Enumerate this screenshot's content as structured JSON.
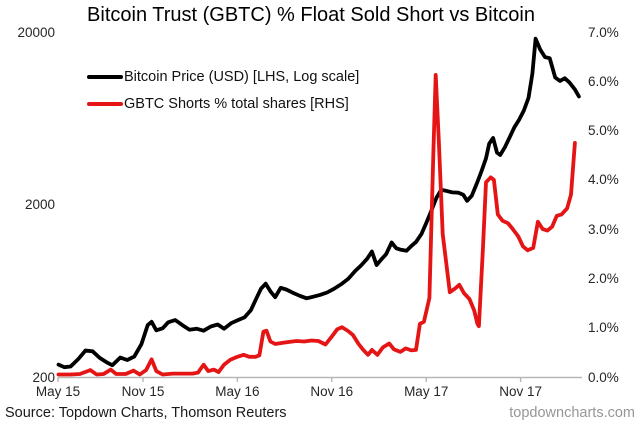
{
  "title": "Bitcoin Trust (GBTC) % Float Sold Short vs Bitcoin",
  "legend": [
    {
      "label": "Bitcoin Price (USD) [LHS, Log scale]",
      "color": "#000000"
    },
    {
      "label": "GBTC Shorts % total shares [RHS]",
      "color": "#e51515"
    }
  ],
  "footer": {
    "source": "Source: Topdown Charts, Thomson Reuters",
    "website": "topdowncharts.com"
  },
  "colors": {
    "bitcoin_line": "#000000",
    "shorts_line": "#e51515",
    "axis": "#b7b7b7",
    "tick_text": "#262626"
  },
  "chart_data": {
    "type": "line",
    "title": "Bitcoin Trust (GBTC) % Float Sold Short vs Bitcoin",
    "x_axis": {
      "unit": "months since May 2015",
      "range": [
        0.6,
        33.9
      ],
      "tick_values": [
        0,
        6,
        12,
        18,
        24,
        30
      ],
      "tick_labels": [
        "May 15",
        "Nov 15",
        "May 16",
        "Nov 16",
        "May 17",
        "Nov 17"
      ]
    },
    "left_axis": {
      "name": "Bitcoin Price (USD)",
      "scale": "log",
      "range": [
        200,
        20000
      ],
      "tick_values": [
        20000,
        2000,
        200
      ],
      "tick_labels": [
        "20000",
        "2000",
        "200"
      ]
    },
    "right_axis": {
      "name": "GBTC Shorts % total shares",
      "scale": "linear",
      "range": [
        0,
        7
      ],
      "tick_values": [
        7,
        6,
        5,
        4,
        3,
        2,
        1,
        0
      ],
      "tick_labels": [
        "7.0%",
        "6.0%",
        "5.0%",
        "4.0%",
        "3.0%",
        "2.0%",
        "1.0%",
        "0.0%"
      ]
    },
    "grid": false,
    "legend_position": "top-left",
    "series": [
      {
        "name": "Bitcoin Price (USD) [LHS, Log scale]",
        "axis": "left",
        "color": "#000000",
        "points": [
          [
            0.63,
            236
          ],
          [
            1.0,
            228
          ],
          [
            1.4,
            230
          ],
          [
            1.9,
            255
          ],
          [
            2.35,
            285
          ],
          [
            2.8,
            282
          ],
          [
            3.25,
            258
          ],
          [
            3.7,
            243
          ],
          [
            4.05,
            234
          ],
          [
            4.55,
            259
          ],
          [
            5.0,
            251
          ],
          [
            5.45,
            263
          ],
          [
            5.9,
            310
          ],
          [
            6.3,
            400
          ],
          [
            6.55,
            418
          ],
          [
            6.85,
            373
          ],
          [
            7.25,
            383
          ],
          [
            7.6,
            415
          ],
          [
            8.05,
            428
          ],
          [
            8.5,
            400
          ],
          [
            8.95,
            376
          ],
          [
            9.4,
            381
          ],
          [
            9.85,
            371
          ],
          [
            10.3,
            392
          ],
          [
            10.75,
            403
          ],
          [
            11.15,
            381
          ],
          [
            11.6,
            410
          ],
          [
            12.05,
            428
          ],
          [
            12.45,
            443
          ],
          [
            12.85,
            487
          ],
          [
            13.2,
            570
          ],
          [
            13.5,
            650
          ],
          [
            13.8,
            695
          ],
          [
            14.1,
            628
          ],
          [
            14.4,
            580
          ],
          [
            14.75,
            658
          ],
          [
            15.1,
            643
          ],
          [
            15.5,
            617
          ],
          [
            15.95,
            592
          ],
          [
            16.4,
            572
          ],
          [
            16.85,
            585
          ],
          [
            17.25,
            598
          ],
          [
            17.7,
            618
          ],
          [
            18.15,
            650
          ],
          [
            18.6,
            690
          ],
          [
            19.05,
            742
          ],
          [
            19.5,
            825
          ],
          [
            19.85,
            885
          ],
          [
            20.25,
            970
          ],
          [
            20.55,
            1068
          ],
          [
            20.85,
            892
          ],
          [
            21.15,
            962
          ],
          [
            21.45,
            1030
          ],
          [
            21.8,
            1205
          ],
          [
            22.1,
            1115
          ],
          [
            22.4,
            1092
          ],
          [
            22.75,
            1078
          ],
          [
            23.05,
            1150
          ],
          [
            23.35,
            1212
          ],
          [
            23.7,
            1350
          ],
          [
            24.0,
            1560
          ],
          [
            24.3,
            1815
          ],
          [
            24.65,
            2185
          ],
          [
            24.95,
            2430
          ],
          [
            25.25,
            2400
          ],
          [
            25.65,
            2350
          ],
          [
            26.05,
            2340
          ],
          [
            26.35,
            2280
          ],
          [
            26.6,
            2100
          ],
          [
            26.9,
            2250
          ],
          [
            27.25,
            2700
          ],
          [
            27.5,
            3100
          ],
          [
            27.8,
            3700
          ],
          [
            28.0,
            4500
          ],
          [
            28.25,
            4860
          ],
          [
            28.5,
            4000
          ],
          [
            28.7,
            3870
          ],
          [
            29.0,
            4300
          ],
          [
            29.3,
            4900
          ],
          [
            29.6,
            5600
          ],
          [
            29.9,
            6200
          ],
          [
            30.2,
            7000
          ],
          [
            30.5,
            8300
          ],
          [
            30.75,
            11500
          ],
          [
            30.95,
            18300
          ],
          [
            31.25,
            15800
          ],
          [
            31.55,
            14300
          ],
          [
            31.85,
            14100
          ],
          [
            32.2,
            10900
          ],
          [
            32.5,
            10400
          ],
          [
            32.8,
            10800
          ],
          [
            33.1,
            10200
          ],
          [
            33.45,
            9300
          ],
          [
            33.7,
            8450
          ]
        ]
      },
      {
        "name": "GBTC Shorts % total shares [RHS]",
        "axis": "right",
        "color": "#e51515",
        "points": [
          [
            0.63,
            0.05
          ],
          [
            1.4,
            0.05
          ],
          [
            2.0,
            0.06
          ],
          [
            2.65,
            0.14
          ],
          [
            3.05,
            0.05
          ],
          [
            3.5,
            0.06
          ],
          [
            3.95,
            0.15
          ],
          [
            4.3,
            0.06
          ],
          [
            4.9,
            0.06
          ],
          [
            5.4,
            0.13
          ],
          [
            5.8,
            0.05
          ],
          [
            6.2,
            0.14
          ],
          [
            6.55,
            0.36
          ],
          [
            6.85,
            0.12
          ],
          [
            7.25,
            0.05
          ],
          [
            7.9,
            0.07
          ],
          [
            8.5,
            0.07
          ],
          [
            9.15,
            0.07
          ],
          [
            9.5,
            0.09
          ],
          [
            9.85,
            0.25
          ],
          [
            10.15,
            0.12
          ],
          [
            10.5,
            0.15
          ],
          [
            10.8,
            0.1
          ],
          [
            11.15,
            0.25
          ],
          [
            11.55,
            0.35
          ],
          [
            12.0,
            0.41
          ],
          [
            12.4,
            0.45
          ],
          [
            12.75,
            0.41
          ],
          [
            13.15,
            0.41
          ],
          [
            13.4,
            0.44
          ],
          [
            13.65,
            0.92
          ],
          [
            13.85,
            0.94
          ],
          [
            14.1,
            0.72
          ],
          [
            14.4,
            0.67
          ],
          [
            14.8,
            0.69
          ],
          [
            15.25,
            0.71
          ],
          [
            15.75,
            0.73
          ],
          [
            16.25,
            0.72
          ],
          [
            16.7,
            0.74
          ],
          [
            17.15,
            0.73
          ],
          [
            17.6,
            0.66
          ],
          [
            17.95,
            0.8
          ],
          [
            18.35,
            0.97
          ],
          [
            18.65,
            1.01
          ],
          [
            19.05,
            0.93
          ],
          [
            19.35,
            0.85
          ],
          [
            19.7,
            0.67
          ],
          [
            20.0,
            0.55
          ],
          [
            20.3,
            0.45
          ],
          [
            20.55,
            0.55
          ],
          [
            20.9,
            0.45
          ],
          [
            21.25,
            0.6
          ],
          [
            21.65,
            0.68
          ],
          [
            21.95,
            0.56
          ],
          [
            22.35,
            0.51
          ],
          [
            22.7,
            0.58
          ],
          [
            23.05,
            0.54
          ],
          [
            23.35,
            0.55
          ],
          [
            23.6,
            1.08
          ],
          [
            23.85,
            1.12
          ],
          [
            24.2,
            1.6
          ],
          [
            24.45,
            4.5
          ],
          [
            24.6,
            6.13
          ],
          [
            24.8,
            4.8
          ],
          [
            25.05,
            2.9
          ],
          [
            25.25,
            2.37
          ],
          [
            25.5,
            1.72
          ],
          [
            25.85,
            1.8
          ],
          [
            26.1,
            1.87
          ],
          [
            26.4,
            1.7
          ],
          [
            26.75,
            1.58
          ],
          [
            27.05,
            1.35
          ],
          [
            27.25,
            1.08
          ],
          [
            27.35,
            1.03
          ],
          [
            27.6,
            2.6
          ],
          [
            27.8,
            3.95
          ],
          [
            28.1,
            4.05
          ],
          [
            28.3,
            4.0
          ],
          [
            28.55,
            3.3
          ],
          [
            28.85,
            3.17
          ],
          [
            29.2,
            3.12
          ],
          [
            29.5,
            3.0
          ],
          [
            29.85,
            2.85
          ],
          [
            30.15,
            2.65
          ],
          [
            30.45,
            2.57
          ],
          [
            30.8,
            2.62
          ],
          [
            31.1,
            3.15
          ],
          [
            31.4,
            3.0
          ],
          [
            31.7,
            2.97
          ],
          [
            32.0,
            3.05
          ],
          [
            32.3,
            3.27
          ],
          [
            32.6,
            3.3
          ],
          [
            32.95,
            3.42
          ],
          [
            33.2,
            3.7
          ],
          [
            33.45,
            4.75
          ]
        ]
      }
    ]
  }
}
